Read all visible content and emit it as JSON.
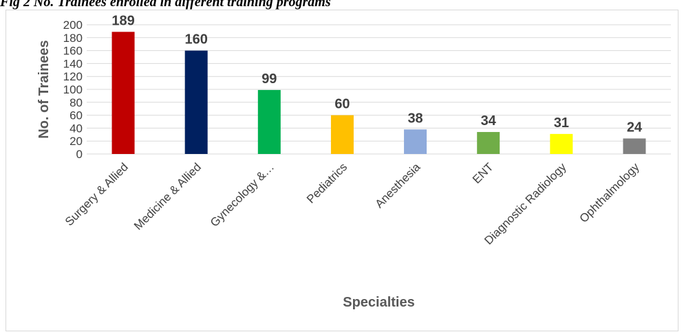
{
  "caption": "Fig 2 No. Trainees enrolled in different training programs",
  "chart_data": {
    "type": "bar",
    "title": "",
    "xlabel": "Specialties",
    "ylabel": "No. of Trainees",
    "ylim": [
      0,
      200
    ],
    "yticks": [
      0,
      20,
      40,
      60,
      80,
      100,
      120,
      140,
      160,
      180,
      200
    ],
    "grid": true,
    "categories": [
      "Surgery & Allied",
      "Medicine & Allied",
      "Gynecology &…",
      "Pediatrics",
      "Anesthesia",
      "ENT",
      "Diagnostic Radiology",
      "Ophthalmology"
    ],
    "values": [
      189,
      160,
      99,
      60,
      38,
      34,
      31,
      24
    ],
    "colors": [
      "#c00000",
      "#002060",
      "#00b050",
      "#ffc000",
      "#8eaadb",
      "#70ad47",
      "#ffff00",
      "#808080"
    ]
  }
}
